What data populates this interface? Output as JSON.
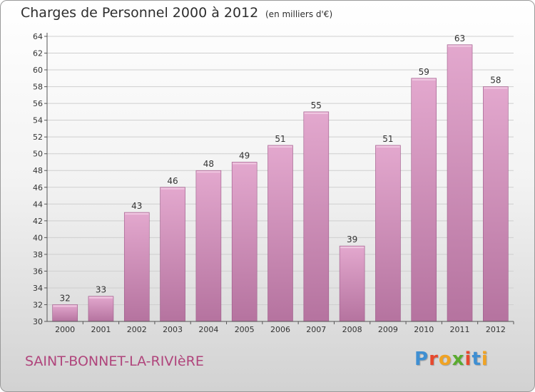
{
  "header": {
    "title": "Charges de Personnel 2000 à 2012",
    "subtitle": "(en milliers d'€)"
  },
  "footer": {
    "commune": "SAINT-BONNET-LA-RIVIèRE",
    "logo_letters": [
      "P",
      "r",
      "o",
      "x",
      "i",
      "t",
      "i"
    ],
    "logo_colors": [
      "#3f8fd2",
      "#e7482d",
      "#f0a324",
      "#5aab2f",
      "#e7482d",
      "#3f8fd2",
      "#f0a324"
    ]
  },
  "colors": {
    "bar_top": "#e3a8ce",
    "bar_bottom": "#b5739f",
    "bar_edge": "#9c5a88",
    "axis": "#555555",
    "grid": "#cfcfcf",
    "text": "#333333",
    "commune": "#b0457c"
  },
  "chart_data": {
    "type": "bar",
    "title": "Charges de Personnel 2000 à 2012",
    "subtitle": "(en milliers d'€)",
    "categories": [
      "2000",
      "2001",
      "2002",
      "2003",
      "2004",
      "2005",
      "2006",
      "2007",
      "2008",
      "2009",
      "2010",
      "2011",
      "2012"
    ],
    "values": [
      32,
      33,
      43,
      46,
      48,
      49,
      51,
      55,
      39,
      51,
      59,
      63,
      58
    ],
    "xlabel": "",
    "ylabel": "",
    "ylim": [
      30,
      64
    ],
    "yticks": [
      30,
      32,
      34,
      36,
      38,
      40,
      42,
      44,
      46,
      48,
      50,
      52,
      54,
      56,
      58,
      60,
      62,
      64
    ],
    "grid": true,
    "legend": "none",
    "data_labels": true
  }
}
